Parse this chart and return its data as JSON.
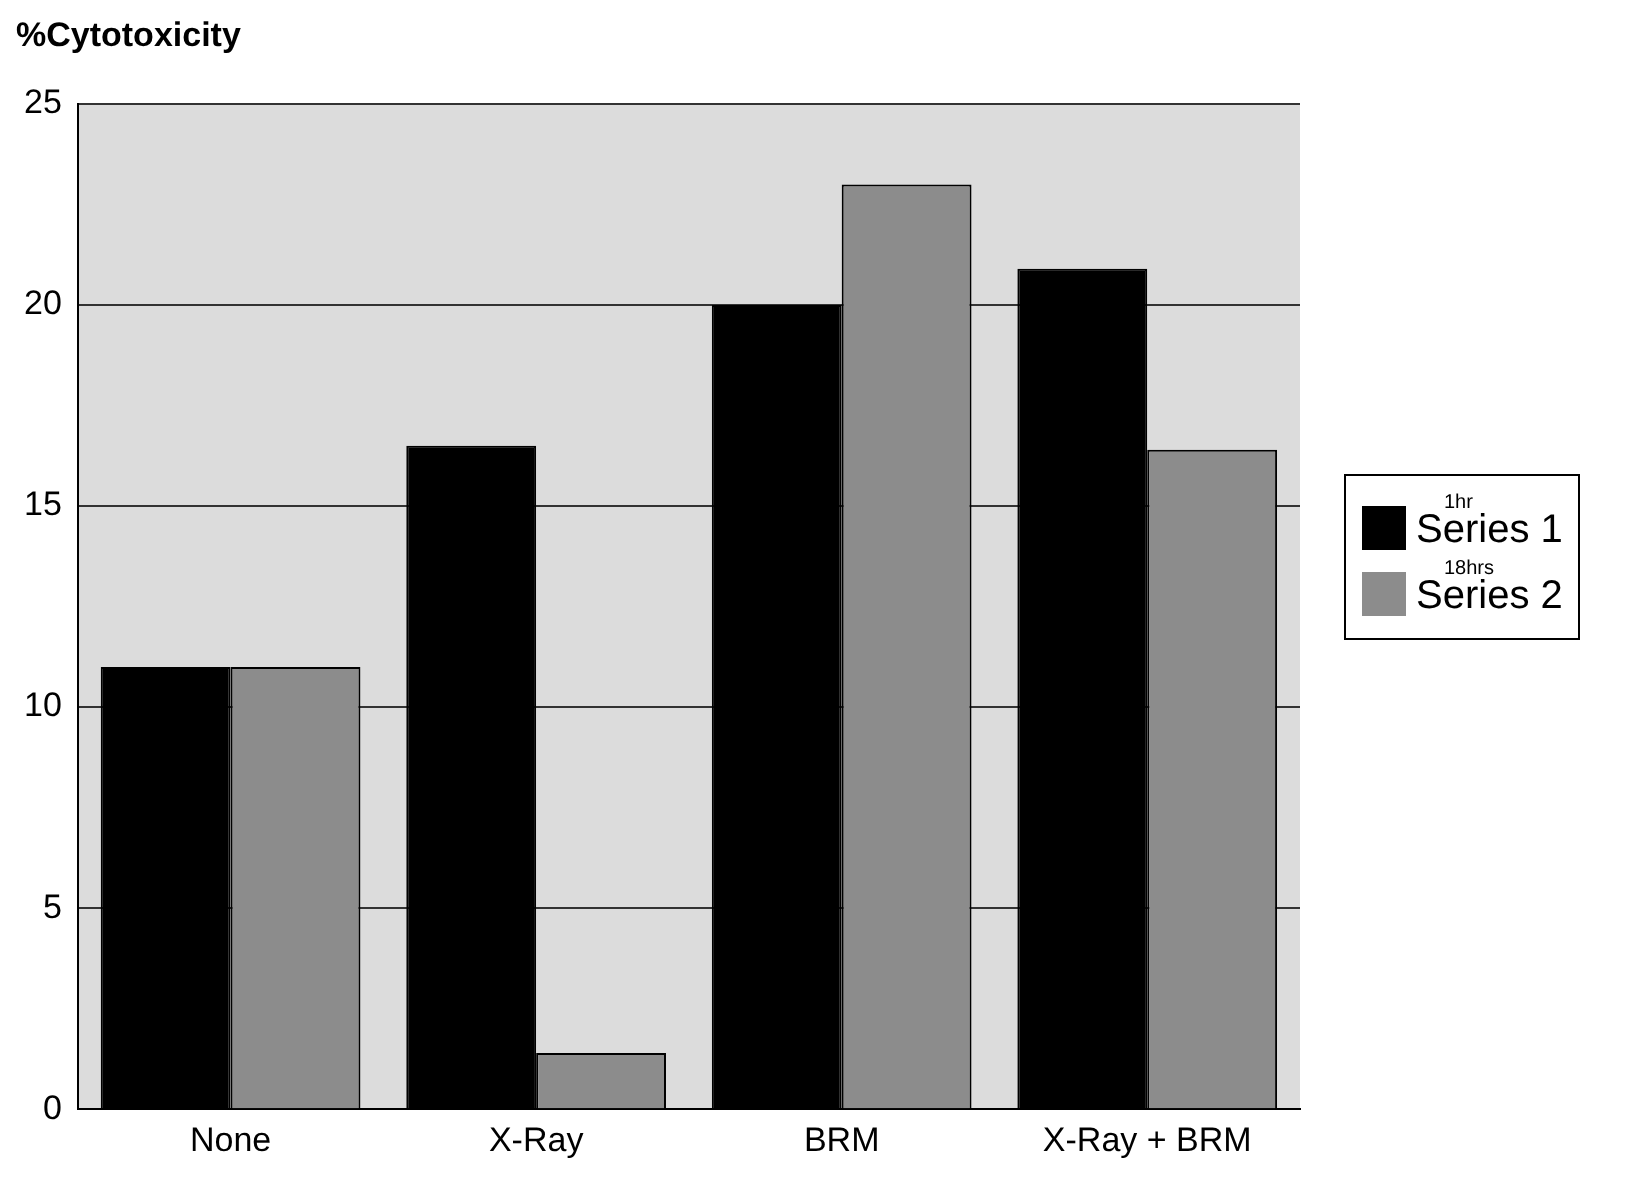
{
  "chart_data": {
    "type": "bar",
    "ylabel": "%Cytotoxicity",
    "categories": [
      "None",
      "X-Ray",
      "BRM",
      "X-Ray + BRM"
    ],
    "series": [
      {
        "name": "$^{1hr}$Series 1",
        "color": "#000000",
        "values": [
          11,
          16.5,
          20,
          20.9
        ]
      },
      {
        "name": "$^{18hrs}$Series 2",
        "color": "#8c8c8c",
        "values": [
          11,
          1.4,
          23,
          16.4
        ]
      }
    ],
    "ylim": [
      0,
      25
    ],
    "yticks": [
      0,
      5,
      10,
      15,
      20,
      25
    ],
    "grid": "y",
    "legend": "right"
  }
}
